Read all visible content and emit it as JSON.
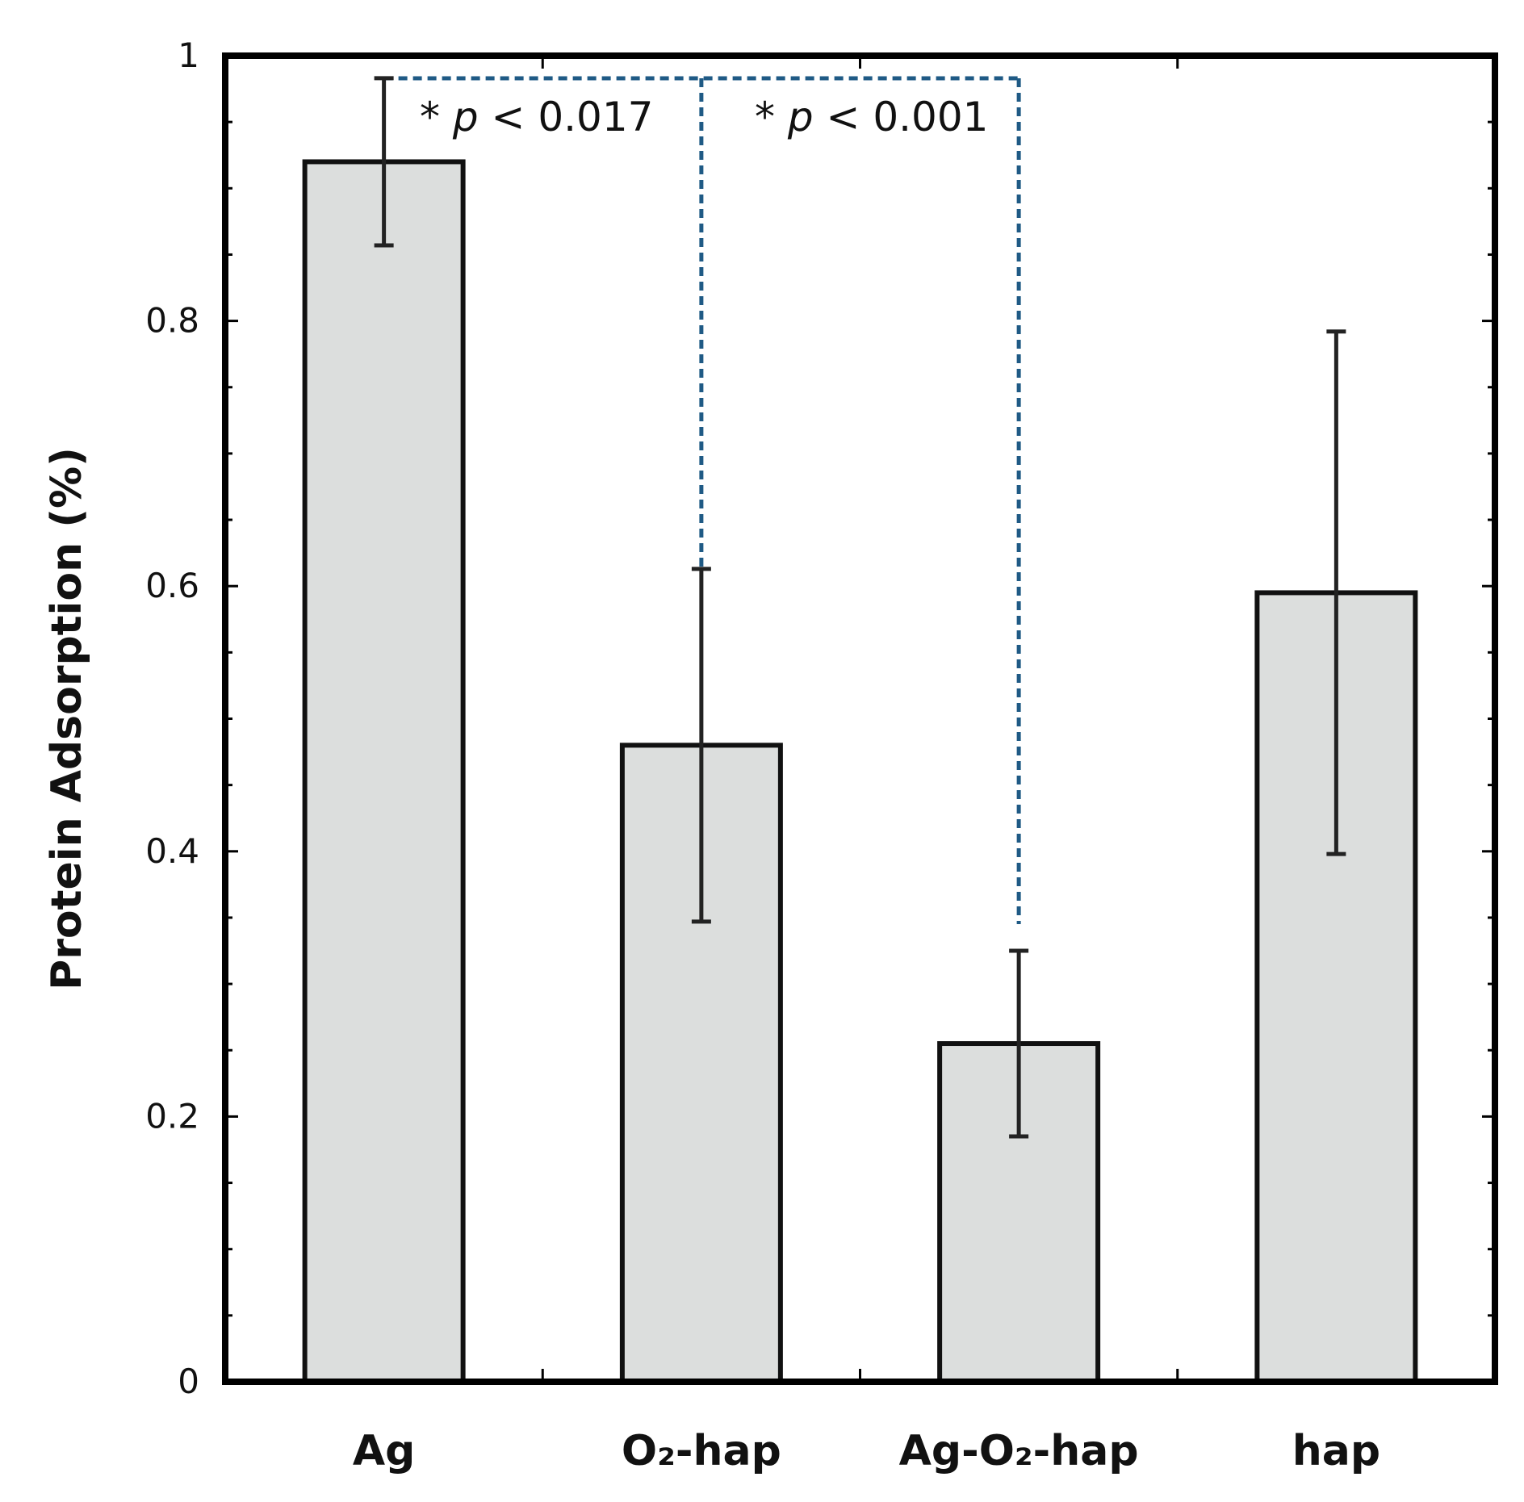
{
  "chart_data": {
    "type": "bar",
    "title": "",
    "xlabel": "",
    "ylabel": "Protein Adsorption (%)",
    "ylim": [
      0,
      1
    ],
    "yticks": [
      0,
      0.2,
      0.4,
      0.6,
      0.8,
      1
    ],
    "ytick_labels": [
      "0",
      "0.2",
      "0.4",
      "0.6",
      "0.8",
      "1"
    ],
    "categories": [
      "Ag",
      "O₂-hap",
      "Ag-O₂-hap",
      "hap"
    ],
    "values": [
      0.92,
      0.48,
      0.255,
      0.595
    ],
    "errors": [
      0.063,
      0.133,
      0.07,
      0.197
    ],
    "grid": false,
    "colors": {
      "bar_fill": "#dcdedd",
      "bar_edge": "#111111",
      "bracket": "#1f5a85"
    },
    "annotations": [
      {
        "star": "*",
        "p_symbol": "p",
        "text": " < 0.017",
        "from": "Ag",
        "to": "O₂-hap"
      },
      {
        "star": "*",
        "p_symbol": "p",
        "text": " < 0.001",
        "from": "O₂-hap",
        "to": "Ag-O₂-hap"
      }
    ]
  }
}
